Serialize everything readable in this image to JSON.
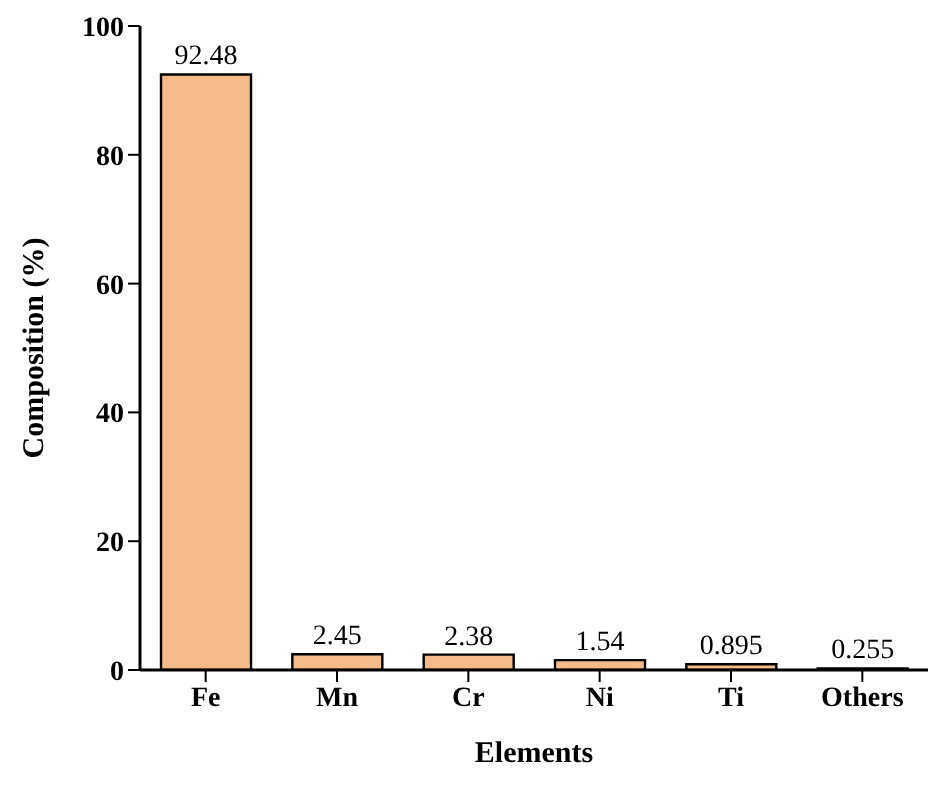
{
  "chart_data": {
    "type": "bar",
    "xlabel": "Elements",
    "ylabel": "Composition (%)",
    "categories": [
      "Fe",
      "Mn",
      "Cr",
      "Ni",
      "Ti",
      "Others"
    ],
    "values": [
      92.48,
      2.45,
      2.38,
      1.54,
      0.895,
      0.255
    ],
    "color": "#f5bb8a",
    "ylim": [
      0,
      100
    ],
    "yticks": [
      0,
      20,
      40,
      60,
      80,
      100
    ],
    "grid": false,
    "legend": false,
    "data_labels": true
  }
}
